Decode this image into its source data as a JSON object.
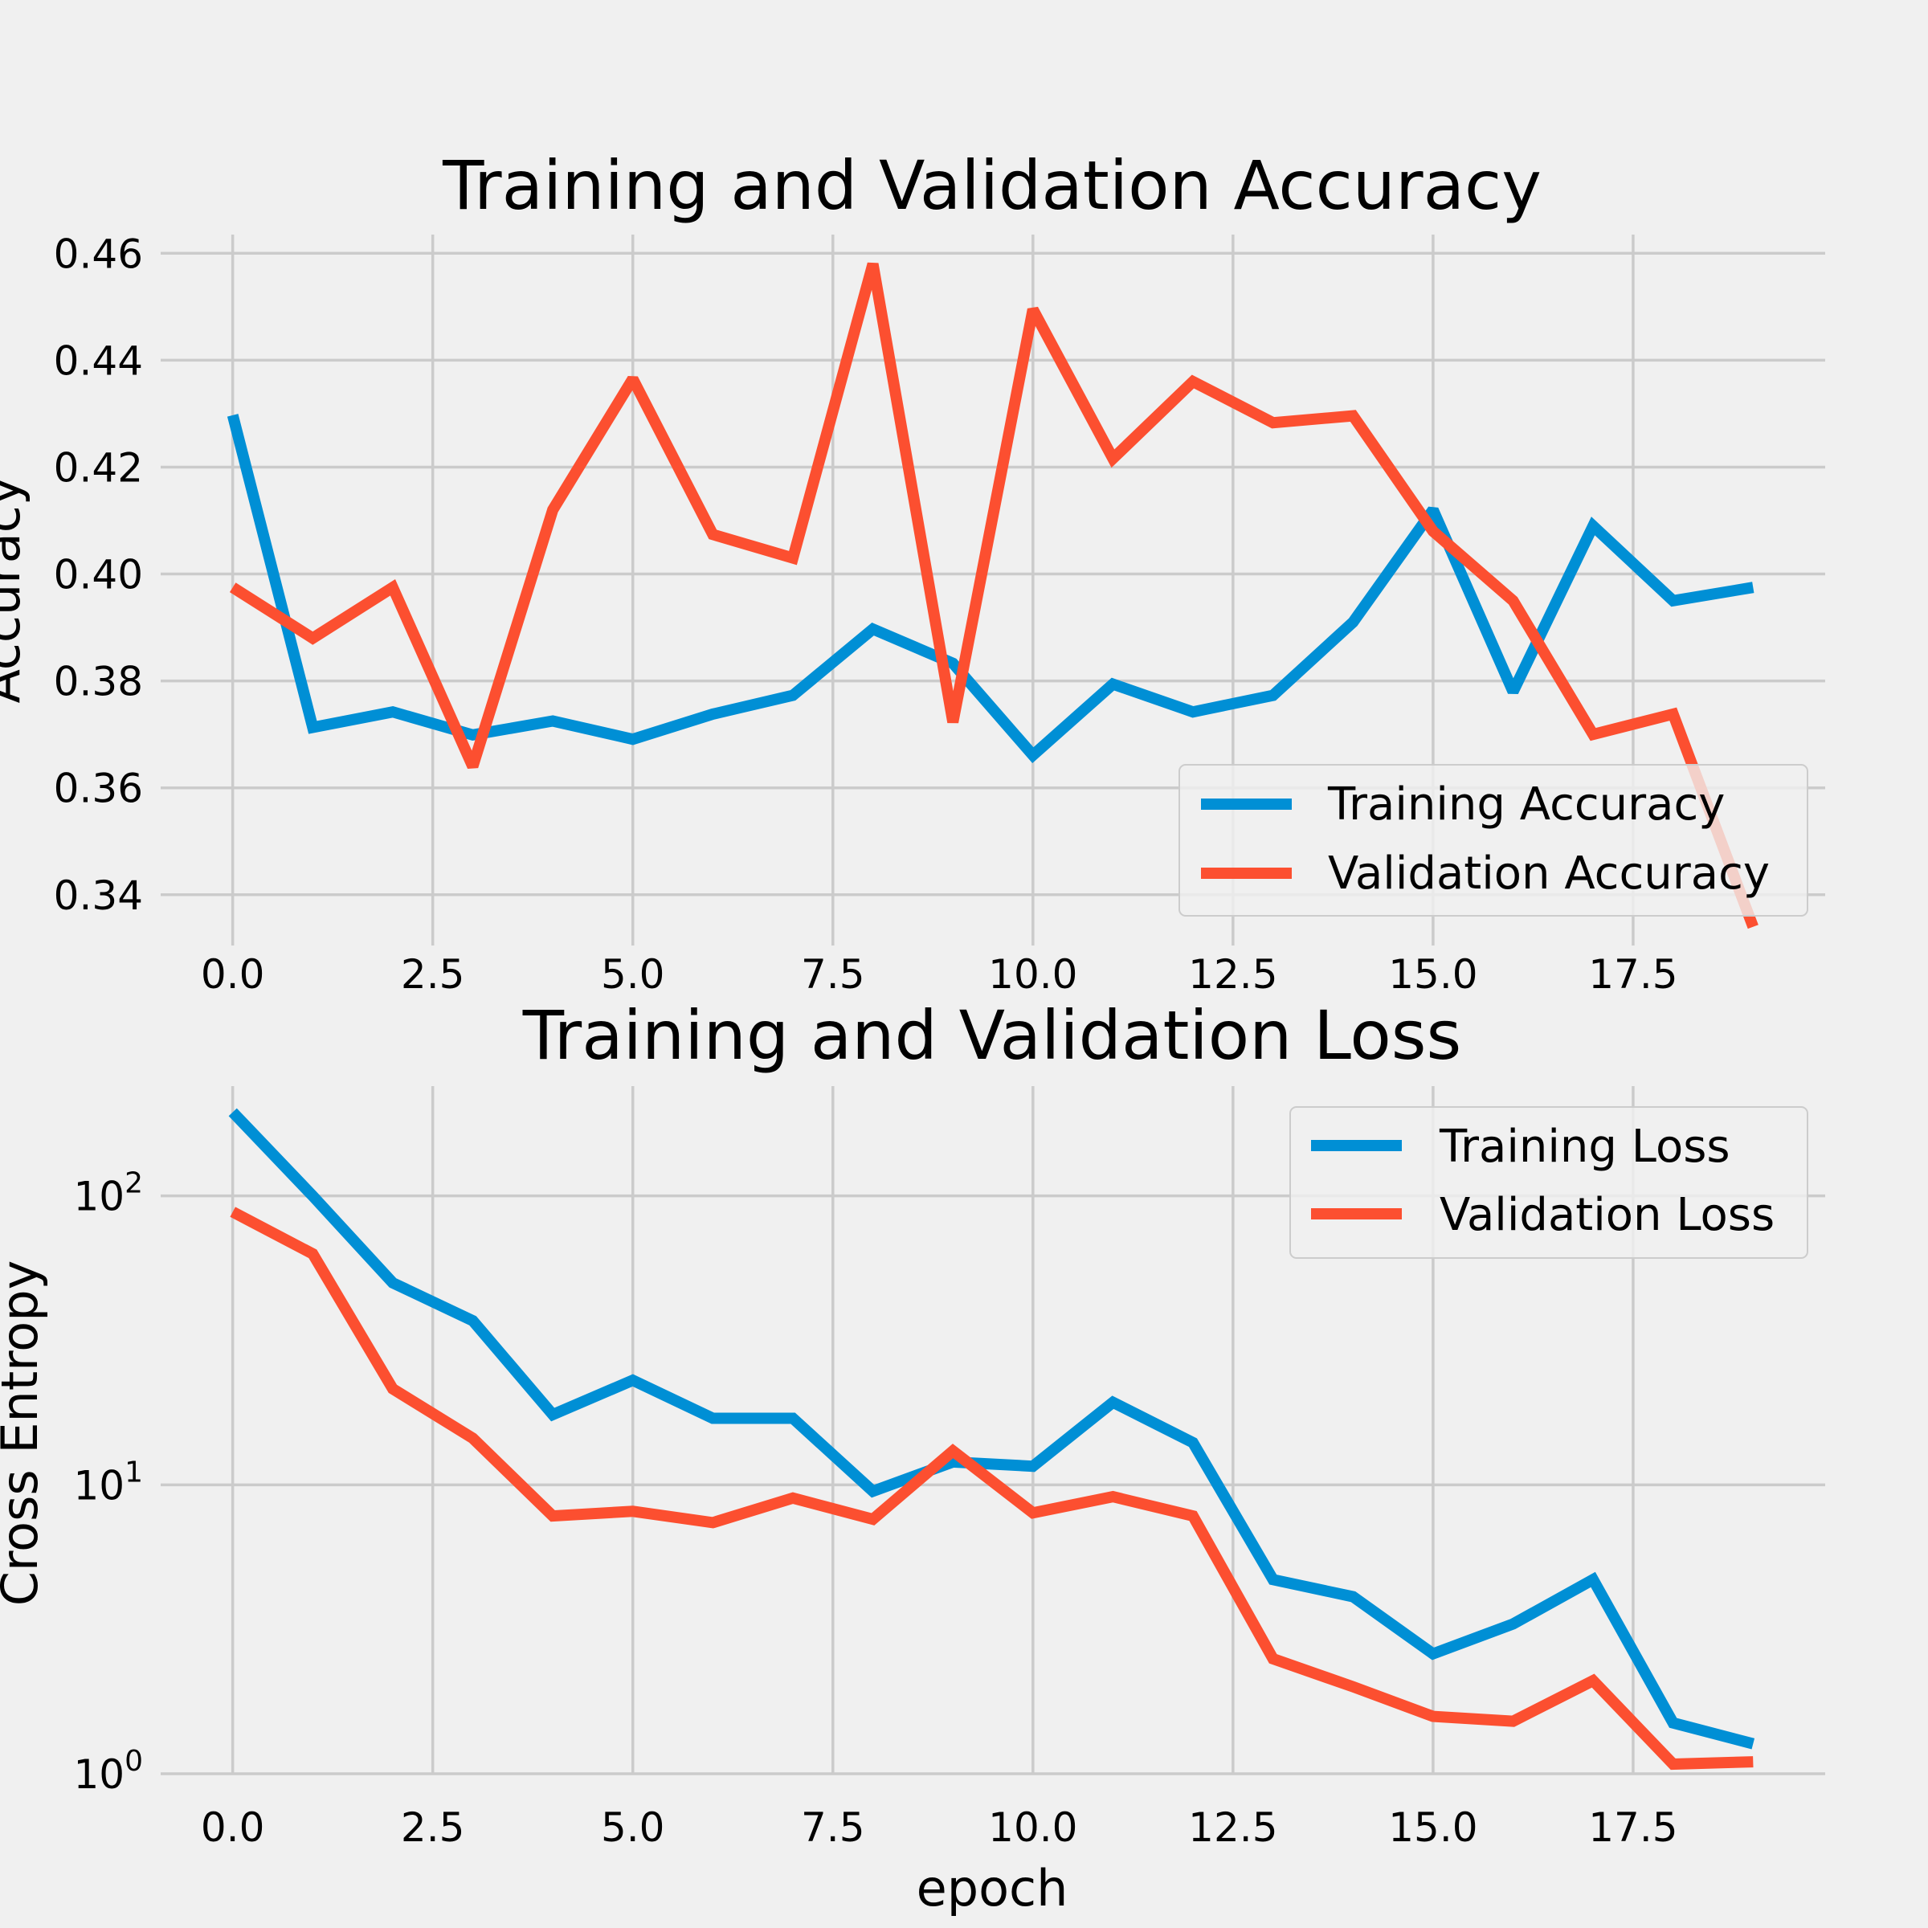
{
  "colors": {
    "background": "#f0f0f0",
    "grid": "#cbcbcb",
    "training": "#008fd5",
    "validation": "#fc4f30"
  },
  "chart_data": [
    {
      "type": "line",
      "title": "Training and Validation Accuracy",
      "xlabel": "",
      "ylabel": "Accuracy",
      "x": [
        0,
        1,
        2,
        3,
        4,
        5,
        6,
        7,
        8,
        9,
        10,
        11,
        12,
        13,
        14,
        15,
        16,
        17,
        18,
        19
      ],
      "xlim": [
        -0.9,
        19.9
      ],
      "ylim": [
        0.3305,
        0.4635
      ],
      "xticks": [
        0.0,
        2.5,
        5.0,
        7.5,
        10.0,
        12.5,
        15.0,
        17.5
      ],
      "xtick_labels": [
        "0.0",
        "2.5",
        "5.0",
        "7.5",
        "10.0",
        "12.5",
        "15.0",
        "17.5"
      ],
      "yticks": [
        0.34,
        0.36,
        0.38,
        0.4,
        0.42,
        0.44,
        0.46
      ],
      "ytick_labels": [
        "0.34",
        "0.36",
        "0.38",
        "0.40",
        "0.42",
        "0.44",
        "0.46"
      ],
      "yscale": "linear",
      "grid": true,
      "legend_position": "lower right",
      "series": [
        {
          "name": "Training Accuracy",
          "color": "#008fd5",
          "values": [
            0.4297,
            0.3713,
            0.3742,
            0.3699,
            0.3725,
            0.3691,
            0.3738,
            0.3773,
            0.3897,
            0.3833,
            0.3661,
            0.3794,
            0.3742,
            0.3773,
            0.391,
            0.412,
            0.378,
            0.409,
            0.395,
            0.3975
          ]
        },
        {
          "name": "Validation Accuracy",
          "color": "#fc4f30",
          "values": [
            0.3975,
            0.388,
            0.3975,
            0.364,
            0.412,
            0.4365,
            0.4074,
            0.403,
            0.458,
            0.3723,
            0.4495,
            0.4216,
            0.436,
            0.4283,
            0.4296,
            0.408,
            0.395,
            0.37,
            0.3738,
            0.334
          ]
        }
      ]
    },
    {
      "type": "line",
      "title": "Training and Validation Loss",
      "xlabel": "epoch",
      "ylabel": "Cross Entropy",
      "x": [
        0,
        1,
        2,
        3,
        4,
        5,
        6,
        7,
        8,
        9,
        10,
        11,
        12,
        13,
        14,
        15,
        16,
        17,
        18,
        19
      ],
      "xlim": [
        -0.9,
        19.9
      ],
      "yscale": "log",
      "ylim_log10": [
        0,
        2.38
      ],
      "xticks": [
        0.0,
        2.5,
        5.0,
        7.5,
        10.0,
        12.5,
        15.0,
        17.5
      ],
      "xtick_labels": [
        "0.0",
        "2.5",
        "5.0",
        "7.5",
        "10.0",
        "12.5",
        "15.0",
        "17.5"
      ],
      "yticks": [
        0,
        1,
        2
      ],
      "ytick_labels": [
        {
          "base": "10",
          "exp": "0"
        },
        {
          "base": "10",
          "exp": "1"
        },
        {
          "base": "10",
          "exp": "2"
        }
      ],
      "grid": true,
      "legend_position": "upper right",
      "series": [
        {
          "name": "Training Loss",
          "color": "#008fd5",
          "values": [
            195,
            100,
            50,
            37,
            17.5,
            23,
            17,
            17,
            9.5,
            12,
            11.6,
            19.3,
            14,
            4.7,
            4.1,
            2.6,
            3.3,
            4.7,
            1.5,
            1.27
          ]
        },
        {
          "name": "Validation Loss",
          "color": "#fc4f30",
          "values": [
            88,
            63,
            21.5,
            14.5,
            7.8,
            8.1,
            7.4,
            9,
            7.6,
            13.1,
            8,
            9.1,
            7.8,
            2.5,
            2,
            1.58,
            1.52,
            2.1,
            1.08,
            1.1
          ]
        }
      ]
    }
  ]
}
